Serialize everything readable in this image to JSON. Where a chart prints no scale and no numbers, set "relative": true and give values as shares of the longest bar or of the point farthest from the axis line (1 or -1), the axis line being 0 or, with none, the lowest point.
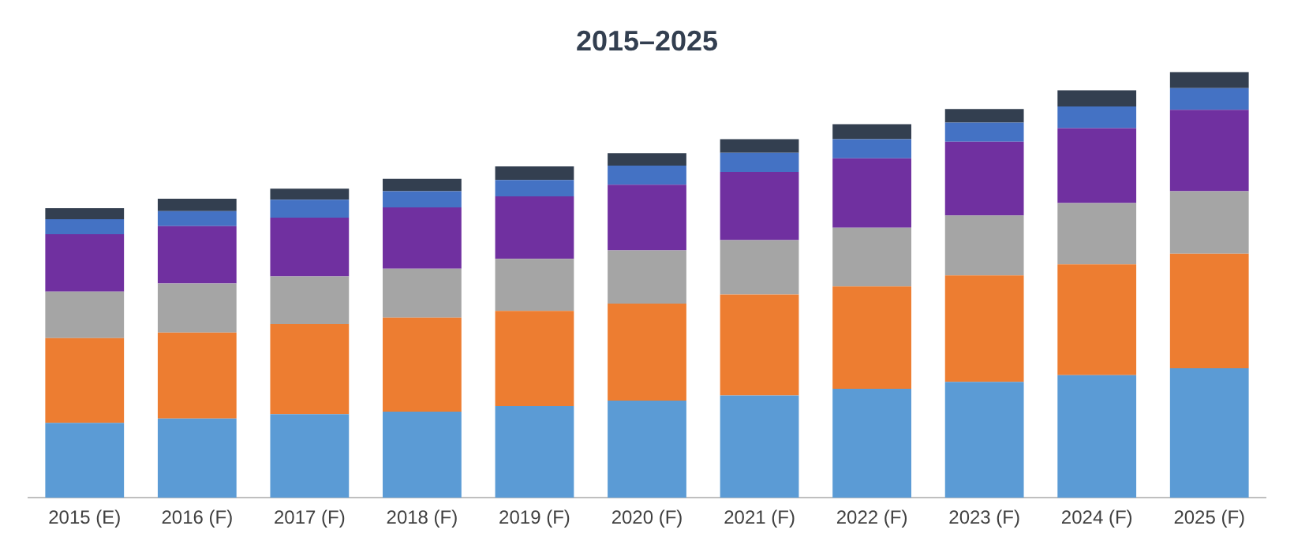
{
  "chart_data": {
    "type": "bar",
    "title": "2015–2025",
    "stacked": true,
    "relative": true,
    "grid": false,
    "legend": false,
    "categories": [
      "2015 (E)",
      "2016 (F)",
      "2017 (F)",
      "2018 (F)",
      "2019 (F)",
      "2020 (F)",
      "2021 (F)",
      "2022 (F)",
      "2023 (F)",
      "2024 (F)",
      "2025 (F)"
    ],
    "series": [
      {
        "color": "#5b9bd5",
        "values": [
          0.176,
          0.186,
          0.196,
          0.202,
          0.215,
          0.228,
          0.24,
          0.256,
          0.272,
          0.288,
          0.304
        ]
      },
      {
        "color": "#ed7d31",
        "values": [
          0.199,
          0.202,
          0.212,
          0.221,
          0.224,
          0.228,
          0.237,
          0.24,
          0.25,
          0.26,
          0.269
        ]
      },
      {
        "color": "#a5a5a5",
        "values": [
          0.109,
          0.115,
          0.112,
          0.115,
          0.122,
          0.125,
          0.128,
          0.138,
          0.141,
          0.144,
          0.147
        ]
      },
      {
        "color": "#7030a0",
        "values": [
          0.135,
          0.135,
          0.138,
          0.144,
          0.147,
          0.154,
          0.16,
          0.163,
          0.173,
          0.176,
          0.191
        ]
      },
      {
        "color": "#4472c4",
        "values": [
          0.035,
          0.035,
          0.042,
          0.038,
          0.038,
          0.045,
          0.045,
          0.045,
          0.045,
          0.051,
          0.051
        ]
      },
      {
        "color": "#333f50",
        "values": [
          0.026,
          0.029,
          0.026,
          0.029,
          0.032,
          0.029,
          0.032,
          0.035,
          0.032,
          0.038,
          0.038
        ]
      }
    ]
  }
}
